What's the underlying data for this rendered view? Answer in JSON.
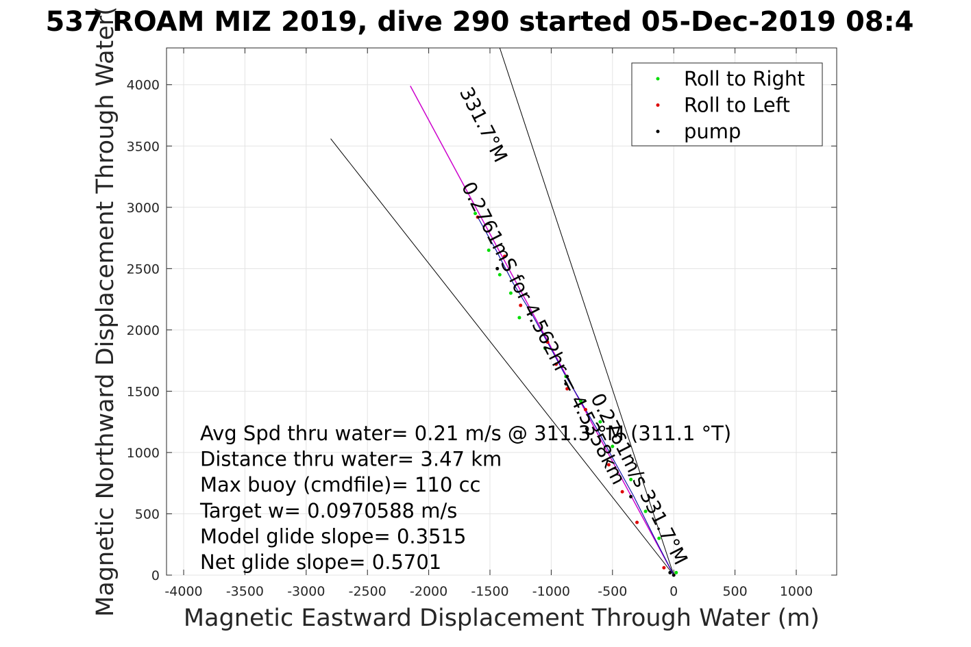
{
  "chart_data": {
    "type": "scatter",
    "title": "537 ROAM MIZ 2019, dive 290 started 05-Dec-2019 08:4",
    "xlabel": "Magnetic Eastward Displacement Through Water (m)",
    "ylabel": "Magnetic Northward Displacement Through Water(",
    "xlim": [
      -4140,
      1330
    ],
    "ylim": [
      0,
      4300
    ],
    "xticks": [
      -4000,
      -3500,
      -3000,
      -2500,
      -2000,
      -1500,
      -1000,
      -500,
      0,
      500,
      1000
    ],
    "yticks": [
      0,
      500,
      1000,
      1500,
      2000,
      2500,
      3000,
      3500,
      4000
    ],
    "grid": true,
    "legend_position": "top-right",
    "colors": {
      "right": "#00dd00",
      "left": "#dd0000",
      "pump": "#000000",
      "track_magenta": "#cc00cc",
      "track_blue": "#1111aa",
      "cyan": "#00cccc",
      "cone": "#000000"
    },
    "legend": [
      {
        "label": "Roll to Right",
        "color": "#00dd00"
      },
      {
        "label": "Roll to Left",
        "color": "#dd0000"
      },
      {
        "label": "pump",
        "color": "#000000"
      }
    ],
    "series": [
      {
        "name": "Roll to Right",
        "points": [
          [
            20,
            20
          ],
          [
            -120,
            300
          ],
          [
            -230,
            520
          ],
          [
            -350,
            780
          ],
          [
            -500,
            1050
          ],
          [
            -600,
            1250
          ],
          [
            -760,
            1420
          ],
          [
            -880,
            1620
          ],
          [
            -1050,
            1850
          ],
          [
            -1260,
            2100
          ],
          [
            -1330,
            2300
          ],
          [
            -1420,
            2450
          ],
          [
            -1510,
            2650
          ],
          [
            -1620,
            2950
          ]
        ]
      },
      {
        "name": "Roll to Left",
        "points": [
          [
            -80,
            60
          ],
          [
            -300,
            430
          ],
          [
            -420,
            680
          ],
          [
            -530,
            900
          ],
          [
            -720,
            1350
          ],
          [
            -870,
            1520
          ],
          [
            -960,
            1720
          ],
          [
            -1030,
            1900
          ],
          [
            -1250,
            2200
          ],
          [
            -1380,
            2600
          ],
          [
            -1600,
            2920
          ]
        ]
      },
      {
        "name": "pump",
        "points": [
          [
            0,
            0
          ],
          [
            -30,
            20
          ],
          [
            -350,
            640
          ],
          [
            -880,
            1560
          ],
          [
            -870,
            1620
          ],
          [
            -1440,
            2500
          ]
        ]
      }
    ],
    "track": {
      "magenta": [
        [
          0,
          0
        ],
        [
          -2150,
          3990
        ]
      ],
      "blue": [
        [
          0,
          0
        ],
        [
          -160,
          310
        ],
        [
          -330,
          650
        ],
        [
          -480,
          920
        ],
        [
          -620,
          1180
        ],
        [
          -760,
          1420
        ],
        [
          -880,
          1620
        ],
        [
          -1020,
          1880
        ],
        [
          -1170,
          2150
        ],
        [
          -1310,
          2380
        ],
        [
          -1450,
          2650
        ],
        [
          -1600,
          2920
        ]
      ]
    },
    "cone_lines": [
      [
        [
          0,
          0
        ],
        [
          -2800,
          3560
        ]
      ],
      [
        [
          0,
          0
        ],
        [
          -1420,
          4300
        ]
      ]
    ],
    "annotations": [
      {
        "text": "331.7°M",
        "x": -1600,
        "y": 3650,
        "rotation": 63
      },
      {
        "text": "0.2761mS for 4.562hr = 4.5358km",
        "x": -1110,
        "y": 1950,
        "rotation": 63
      },
      {
        "text": "0.2761m/s 331.7°M",
        "x": -330,
        "y": 760,
        "rotation": 63
      }
    ],
    "info_lines": [
      "Avg Spd thru water=  0.21 m/s @ 311.3 °M (311.1 °T)",
      "Distance thru water=  3.47 km",
      "Max buoy (cmdfile)= 110 cc",
      "Target w= 0.0970588 m/s",
      "Model glide slope= 0.3515",
      "Net glide slope= 0.5701"
    ]
  }
}
